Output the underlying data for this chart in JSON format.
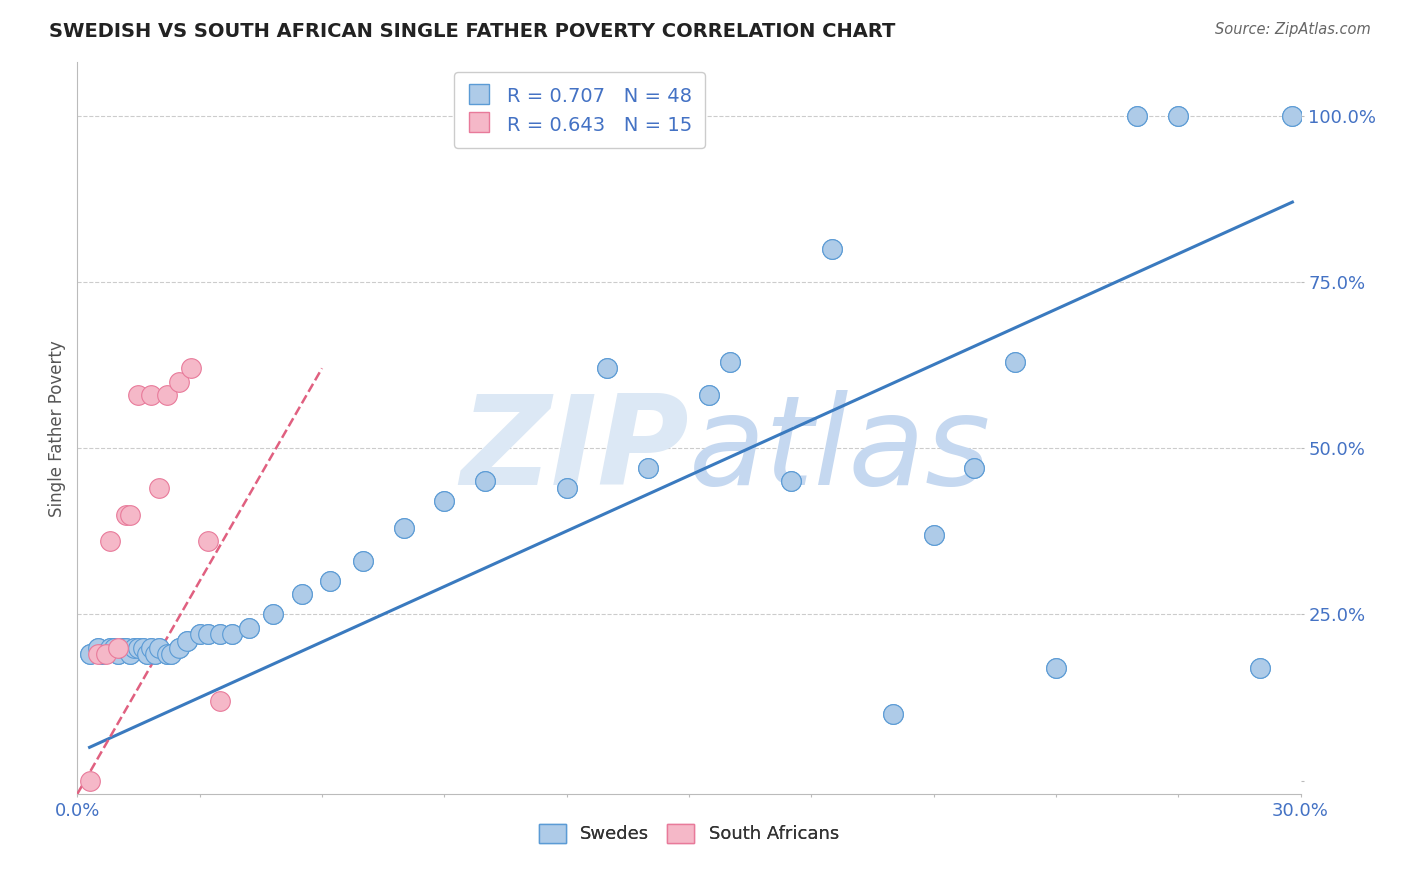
{
  "title": "SWEDISH VS SOUTH AFRICAN SINGLE FATHER POVERTY CORRELATION CHART",
  "source": "Source: ZipAtlas.com",
  "ylabel": "Single Father Poverty",
  "xlim": [
    0.0,
    0.3
  ],
  "ylim": [
    -0.02,
    1.08
  ],
  "blue_R": 0.707,
  "blue_N": 48,
  "pink_R": 0.643,
  "pink_N": 15,
  "blue_fill": "#aecbe8",
  "pink_fill": "#f5b8c8",
  "blue_edge": "#5b9bd5",
  "pink_edge": "#e87a9a",
  "blue_line": "#3a7abf",
  "pink_line": "#e06080",
  "watermark_color": "#d8e8f5",
  "watermark_text_color": "#b8d0e8",
  "grid_color": "#cccccc",
  "title_color": "#222222",
  "axis_label_color": "#555555",
  "tick_color": "#4472c4",
  "source_color": "#666666",
  "swedes_x": [
    0.003,
    0.005,
    0.006,
    0.008,
    0.009,
    0.01,
    0.011,
    0.012,
    0.013,
    0.014,
    0.015,
    0.016,
    0.017,
    0.018,
    0.019,
    0.02,
    0.022,
    0.023,
    0.025,
    0.027,
    0.03,
    0.032,
    0.035,
    0.038,
    0.042,
    0.048,
    0.055,
    0.062,
    0.07,
    0.08,
    0.09,
    0.1,
    0.12,
    0.13,
    0.14,
    0.155,
    0.16,
    0.175,
    0.185,
    0.2,
    0.21,
    0.22,
    0.23,
    0.24,
    0.26,
    0.27,
    0.29,
    0.298
  ],
  "swedes_y": [
    0.19,
    0.2,
    0.19,
    0.2,
    0.2,
    0.19,
    0.2,
    0.2,
    0.19,
    0.2,
    0.2,
    0.2,
    0.19,
    0.2,
    0.19,
    0.2,
    0.19,
    0.19,
    0.2,
    0.21,
    0.22,
    0.22,
    0.22,
    0.22,
    0.23,
    0.25,
    0.28,
    0.3,
    0.33,
    0.38,
    0.42,
    0.45,
    0.44,
    0.62,
    0.47,
    0.58,
    0.63,
    0.45,
    0.8,
    0.1,
    0.37,
    0.47,
    0.63,
    0.17,
    1.0,
    1.0,
    0.17,
    1.0
  ],
  "sa_x": [
    0.003,
    0.005,
    0.007,
    0.008,
    0.01,
    0.012,
    0.013,
    0.015,
    0.018,
    0.02,
    0.022,
    0.025,
    0.028,
    0.032,
    0.035
  ],
  "sa_y": [
    0.0,
    0.19,
    0.19,
    0.36,
    0.2,
    0.4,
    0.4,
    0.58,
    0.58,
    0.44,
    0.58,
    0.6,
    0.62,
    0.36,
    0.12
  ],
  "blue_line_x0": 0.003,
  "blue_line_y0": 0.05,
  "blue_line_x1": 0.298,
  "blue_line_y1": 0.87,
  "pink_line_x0": 0.0,
  "pink_line_y0": -0.02,
  "pink_line_x1": 0.06,
  "pink_line_y1": 0.62
}
